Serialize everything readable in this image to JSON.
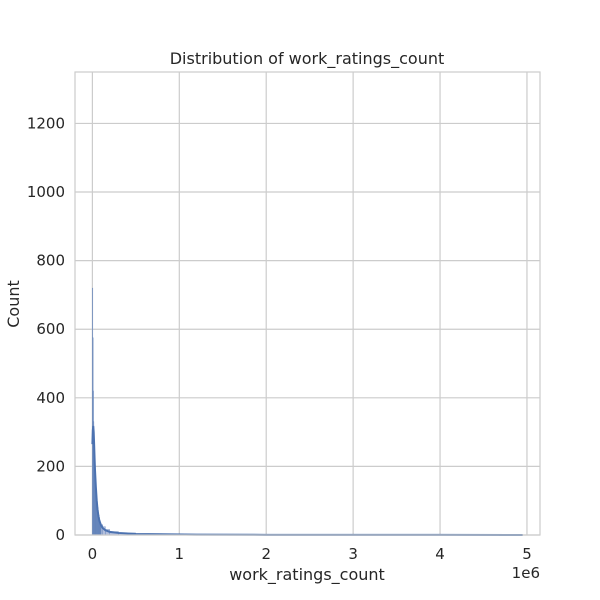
{
  "chart_data": {
    "type": "histogram",
    "title": "Distribution of work_ratings_count",
    "xlabel": "work_ratings_count",
    "ylabel": "Count",
    "x_offset_label": "1e6",
    "xlim": [
      -200000,
      5150000
    ],
    "ylim": [
      0,
      1350
    ],
    "x_ticks": [
      0,
      1000000,
      2000000,
      3000000,
      4000000,
      5000000
    ],
    "x_tick_labels": [
      "0",
      "1",
      "2",
      "3",
      "4",
      "5"
    ],
    "y_ticks": [
      0,
      200,
      400,
      600,
      800,
      1000,
      1200
    ],
    "y_tick_labels": [
      "0",
      "200",
      "400",
      "600",
      "800",
      "1000",
      "1200"
    ],
    "grid": true,
    "colors": {
      "bar_fill": "#b3bfdc",
      "bar_edge": "#4c72b0",
      "kde": "#4c72b0",
      "grid": "#cccccc",
      "spine": "#cccccc"
    },
    "bins": {
      "edges": [
        0,
        4000,
        8000,
        12000,
        16000,
        20000,
        24000,
        28000,
        32000,
        36000,
        40000,
        44000,
        48000,
        52000,
        56000,
        60000,
        64000,
        68000,
        72000,
        76000,
        80000,
        84000,
        88000,
        92000,
        96000,
        100000,
        120000,
        150000,
        200000,
        300000,
        500000,
        800000,
        1200000,
        2000000,
        3000000,
        4000000,
        4950000
      ],
      "counts": [
        720,
        575,
        420,
        330,
        290,
        255,
        225,
        195,
        170,
        150,
        135,
        120,
        108,
        97,
        88,
        80,
        72,
        65,
        58,
        52,
        47,
        43,
        39,
        36,
        33,
        30,
        24,
        16,
        10,
        6,
        4,
        2,
        1,
        1,
        0,
        1
      ]
    },
    "kde": {
      "x": [
        0,
        5000,
        10000,
        15000,
        20000,
        25000,
        30000,
        40000,
        50000,
        60000,
        70000,
        80000,
        100000,
        120000,
        150000,
        200000,
        300000,
        500000,
        800000,
        1200000,
        2000000,
        3000000,
        4000000,
        4950000
      ],
      "y": [
        265,
        305,
        318,
        300,
        265,
        225,
        190,
        140,
        100,
        72,
        55,
        42,
        28,
        20,
        14,
        9,
        6,
        3,
        2,
        1,
        0.5,
        0.2,
        0.2,
        0.1
      ]
    }
  }
}
